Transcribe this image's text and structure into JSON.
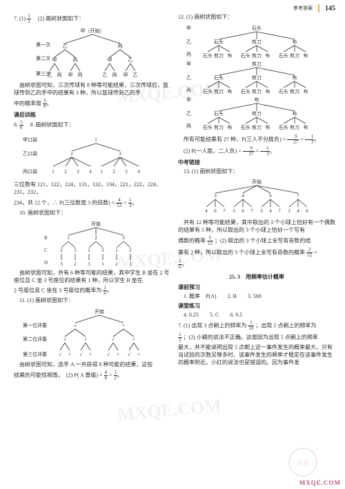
{
  "header": {
    "label": "参考答案",
    "page": "145"
  },
  "colors": {
    "text": "#2b2b2b",
    "bg": "#ffffff",
    "accent": "#d9b36a",
    "watermark": "rgba(0,0,0,0.06)",
    "logo": "#b85c7a"
  },
  "left": {
    "q7_intro": "7. (1) ",
    "q7_frac": {
      "n": "1",
      "d": "2"
    },
    "q7_after": "　(2) 画树状图如下：",
    "tree1": {
      "root": "甲（开始）",
      "level_labels": [
        "第一次",
        "第二次",
        "第三次"
      ],
      "L1": [
        "乙",
        "丙"
      ],
      "L2": [
        "甲",
        "丙",
        "甲",
        "乙"
      ],
      "L3": [
        "乙",
        "丙",
        "甲",
        "丙",
        "乙",
        "丙",
        "甲",
        "乙"
      ]
    },
    "q7_text": "由树状图可知，三次传球有 8 种等可能结果，三次传球后，篮球传到乙的手中的结果有 3 种，所以篮球传到乙的手",
    "q7_tail": "中的概率是 ",
    "q7_frac2": {
      "n": "3",
      "d": "8"
    },
    "sect1": "课后训练",
    "q8a": "8. ",
    "q8_frac": {
      "n": "1",
      "d": "6"
    },
    "q8b": "　9. 画树状图如下：",
    "tree2": {
      "bags": [
        "甲口袋",
        "乙口袋",
        "丙口袋"
      ],
      "A": [
        "1"
      ],
      "B": [
        "2",
        "3"
      ],
      "C_rep": [
        "1",
        "2",
        "3",
        "4"
      ]
    },
    "q9_text1": "三位数有 121，122，124，131，132，134，221，222，224，231，232，",
    "q9_text2": "234，共 12 个，∴ P(三位数是 3 的倍数) = ",
    "q9_frac1": {
      "n": "4",
      "d": "12"
    },
    "q9_eq": " = ",
    "q9_frac2": {
      "n": "1",
      "d": "3"
    },
    "q10a": "10. 画树状图如下：",
    "tree3": {
      "root": "开始",
      "rows": [
        "B",
        "C",
        "D"
      ],
      "B": [
        "1",
        "2",
        "3"
      ],
      "C": [
        "2",
        "3",
        "1",
        "3",
        "1",
        "2"
      ],
      "D": [
        "3",
        "2",
        "3",
        "1",
        "2",
        "1"
      ]
    },
    "q10_text": "由树状图可知，共有 6 种等可能的结果，其中学生 B 坐在 2 号座位且 C 坐 3 号座位的结果有 1 种，所以学生 B 坐在",
    "q10_tail": "2 号座位且 C 坐在 3 号座位的概率为 ",
    "q10_frac": {
      "n": "1",
      "d": "6"
    },
    "q11a": "11. (1) 画树状图如下：",
    "tree4": {
      "root": "开始",
      "rows": [
        "第一位评委",
        "第二位评委",
        "第三位评委"
      ],
      "mark_pass": "√",
      "mark_fail": "×"
    },
    "q11_text": "由树状图可知，选手 A 一共获得 8 种可能的结果，这些",
    "q11_tail": "结果的可能性相等。　(2) P( A 晋级) = ",
    "q11_frac1": {
      "n": "4",
      "d": "8"
    },
    "q11_eq": " = ",
    "q11_frac2": {
      "n": "1",
      "d": "2"
    }
  },
  "right": {
    "q12a": "12. (1) 画树状图如下：",
    "rps": {
      "players": [
        "甲",
        "乙",
        "丙"
      ],
      "moves": [
        "石头",
        "剪刀",
        "布"
      ]
    },
    "q12_text": "所有可能结果有 27 种，P(三人不分胜负) = ",
    "q12_frac1": {
      "n": "9",
      "d": "27"
    },
    "q12_eq": " = ",
    "q12_frac2": {
      "n": "1",
      "d": "3"
    },
    "q12b": "(2) P(一人胜，二人负) = ",
    "q12b_frac1": {
      "n": "9",
      "d": "27"
    },
    "q12b_eq": " = ",
    "q12b_frac2": {
      "n": "1",
      "d": "3"
    },
    "sect2": "中考链接",
    "q13a": "13. (1) 画树状图如下：",
    "tree5": {
      "root": "开始",
      "L1": [
        "3",
        "4",
        "6",
        "7"
      ],
      "L2": [
        "4",
        "6",
        "7",
        "3",
        "6",
        "7",
        "3",
        "4",
        "7",
        "3",
        "4",
        "6"
      ]
    },
    "q13_text1": "共有 12 种等可能结果，其中取出的 3 个小球上恰好有一个偶数的结果有 5 种，所以取出的 3 个小球上恰好一个写有",
    "q13_text2a": "偶数的概率 ",
    "q13_frac1": {
      "n": "5",
      "d": "12"
    },
    "q13_text2b": "；(2) 取出的 3 个小球上全写有奇数的结",
    "q13_text3a": "果有 2 种，所以取出的 3 个小球上全写有奇数的概率 ",
    "q13_frac2": {
      "n": "2",
      "d": "12"
    },
    "q13_text3b": " =",
    "q13_frac3": {
      "n": "1",
      "d": "6"
    },
    "title25_3": "25. 3　用频率估计概率",
    "sect3": "课前预习",
    "pre": "1. 概率　P(A)　　2. B　　3. 560",
    "sect4": "课堂练习",
    "prac": "4. 0.25　　5. C　　6. 0.5",
    "q7r_a": "7. (1) 出现 3 点朝上的频率为 ",
    "q7r_f1": {
      "n": "1",
      "d": "10"
    },
    "q7r_b": "；出现 5 点朝上的频率为",
    "q7r_c": "",
    "q7r_f2": {
      "n": "1",
      "d": "3"
    },
    "q7r_d": "；(2) 小颖的说法不正确。这是因为出现 5 点朝上的频率",
    "q7r_e": "最大，并不能说明出现 5 点朝上这一事件发生的概率最大，只有当试验的次数足够多时，该事件发生的频率才稳定在该事件发生的概率附近。小红的说法也是错误的。因为事件发"
  },
  "watermarks": [
    "MXQE.COM",
    "MXQE.COM",
    "MXQE.COM"
  ],
  "logo": "MXQE.COM",
  "stamp": "答案"
}
